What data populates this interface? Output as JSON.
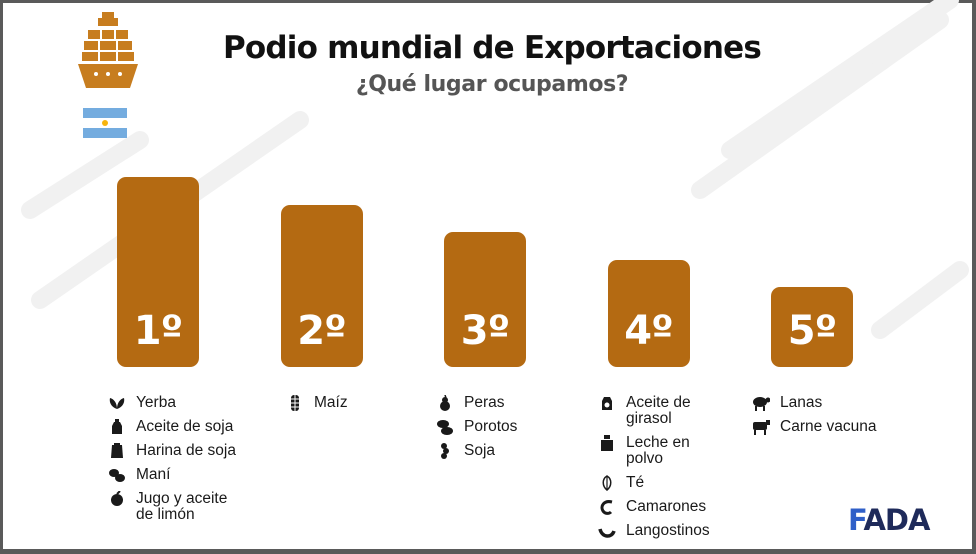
{
  "header": {
    "title": "Podio mundial de Exportaciones",
    "subtitle": "¿Qué lugar ocupamos?"
  },
  "icons": {
    "ship": "cargo-ship-icon",
    "flag": "argentina-flag"
  },
  "colors": {
    "bar": "#b46a12",
    "title": "#111111",
    "subtitle": "#555555",
    "flag_blue": "#74acdf",
    "brand_dark": "#1e2a5a",
    "brand_blue": "#2f5fc8"
  },
  "chart_data": {
    "type": "bar",
    "categories": [
      "1º",
      "2º",
      "3º",
      "4º",
      "5º"
    ],
    "values": [
      5,
      4,
      3,
      2,
      1
    ],
    "ylim": [
      0,
      5
    ],
    "grid": false,
    "legend": "none",
    "bar_labels": [
      "1º",
      "2º",
      "3º",
      "4º",
      "5º"
    ]
  },
  "products": [
    {
      "place": "1º",
      "items": [
        {
          "icon": "yerba-leaf-icon",
          "label": "Yerba"
        },
        {
          "icon": "oil-bottle-icon",
          "label": "Aceite de soja"
        },
        {
          "icon": "flour-sack-icon",
          "label": "Harina de soja"
        },
        {
          "icon": "peanut-icon",
          "label": "Maní"
        },
        {
          "icon": "lemon-icon",
          "label": "Jugo y aceite\nde limón"
        }
      ]
    },
    {
      "place": "2º",
      "items": [
        {
          "icon": "corn-icon",
          "label": "Maíz"
        }
      ]
    },
    {
      "place": "3º",
      "items": [
        {
          "icon": "pear-icon",
          "label": "Peras"
        },
        {
          "icon": "bean-icon",
          "label": "Porotos"
        },
        {
          "icon": "soybean-icon",
          "label": "Soja"
        }
      ]
    },
    {
      "place": "4º",
      "items": [
        {
          "icon": "sunflower-oil-icon",
          "label": "Aceite de\ngirasol"
        },
        {
          "icon": "milk-powder-icon",
          "label": "Leche en\npolvo"
        },
        {
          "icon": "tea-leaf-icon",
          "label": "Té"
        },
        {
          "icon": "shrimp-icon",
          "label": "Camarones"
        },
        {
          "icon": "prawn-icon",
          "label": "Langostinos"
        }
      ]
    },
    {
      "place": "5º",
      "items": [
        {
          "icon": "sheep-icon",
          "label": "Lanas"
        },
        {
          "icon": "cow-icon",
          "label": "Carne vacuna"
        }
      ]
    }
  ],
  "footer": {
    "logo": "FADA"
  }
}
